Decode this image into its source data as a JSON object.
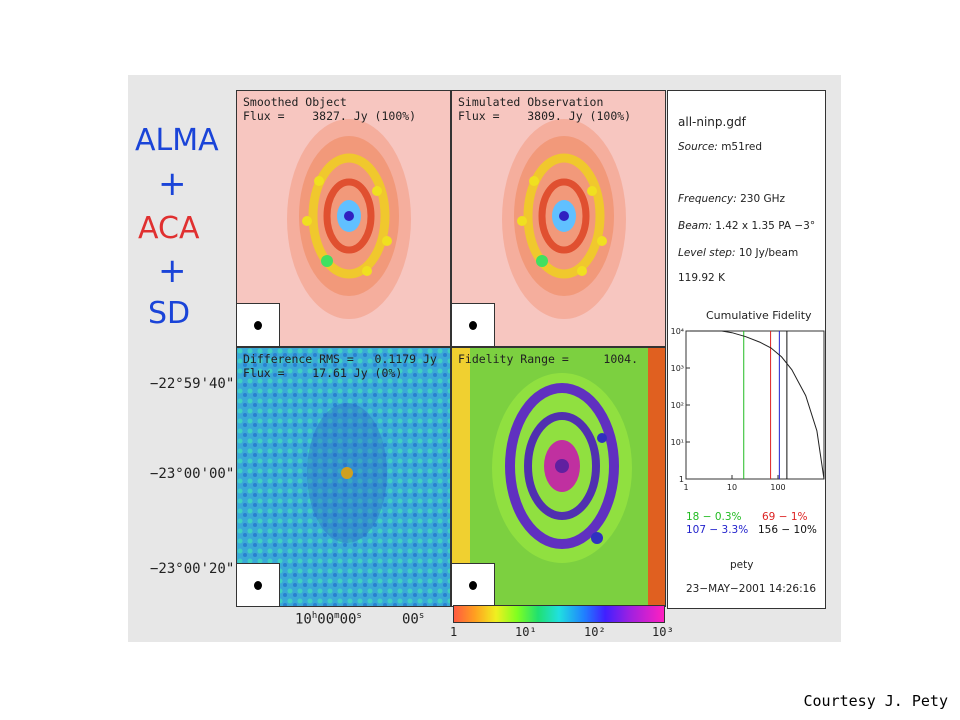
{
  "left_labels": {
    "alma": "ALMA",
    "plus1": "+",
    "aca": "ACA",
    "plus2": "+",
    "sd": "SD",
    "colors": {
      "alma": "#1a44d8",
      "aca": "#e03030",
      "sd": "#1a44d8"
    }
  },
  "declination_ticks": [
    "−22°59'40\"",
    "−23°00'00\"",
    "−23°00'20\""
  ],
  "ra_ticks": {
    "main_prefix": "10",
    "main_h": "h",
    "main_mid": "00",
    "main_m": "m",
    "main_sec": "00",
    "main_s": "s",
    "minor": "00",
    "minor_s": "s"
  },
  "panels": {
    "smoothed": {
      "line1": "Smoothed Object",
      "line2": "Flux =    3827. Jy (100%)"
    },
    "simulated": {
      "line1": "Simulated Observation",
      "line2": "Flux =    3809. Jy (100%)"
    },
    "difference": {
      "line1": "Difference RMS =   0.1179 Jy",
      "line2": "Flux =    17.61 Jy (0%)"
    },
    "fidelity": {
      "line1": "Fidelity Range =     1004."
    }
  },
  "info": {
    "filename": "all-ninp.gdf",
    "source_label": "Source:",
    "source": "m51red",
    "frequency_label": "Frequency:",
    "frequency": "230 GHz",
    "beam_label": "Beam:",
    "beam": "1.42 x 1.35 PA −3°",
    "level_label": "Level step:",
    "level": "10 Jy/beam",
    "temperature": "119.92 K",
    "fidelity_title": "Cumulative Fidelity",
    "legend": [
      {
        "text": "18 − 0.3%",
        "color": "#22bb22"
      },
      {
        "text": "69 − 1%",
        "color": "#dd2222"
      },
      {
        "text": "107 − 3.3%",
        "color": "#2222cc"
      },
      {
        "text": "156 − 10%",
        "color": "#111111"
      }
    ],
    "user": "pety",
    "date": "23−MAY−2001 14:26:16"
  },
  "chart_data": {
    "type": "line",
    "title": "Cumulative Fidelity",
    "xscale": "log",
    "yscale": "log",
    "xlim": [
      1,
      1000
    ],
    "ylim": [
      1,
      10000
    ],
    "x_ticks": [
      "1",
      "10",
      "100"
    ],
    "y_ticks": [
      "10⁴",
      "10³",
      "10²",
      "10¹",
      "1"
    ],
    "series": [
      {
        "x": [
          1,
          3,
          6,
          10,
          20,
          40,
          70,
          120,
          200,
          400,
          700,
          1000
        ],
        "y": [
          15000,
          13000,
          11000,
          9000,
          7000,
          5000,
          3500,
          2000,
          900,
          180,
          20,
          1
        ]
      }
    ],
    "markers": [
      {
        "x": 18,
        "color": "#22bb22"
      },
      {
        "x": 69,
        "color": "#dd2222"
      },
      {
        "x": 107,
        "color": "#2222cc"
      },
      {
        "x": 156,
        "color": "#111111"
      }
    ]
  },
  "colorbar": {
    "ticks": [
      "1",
      "10¹",
      "10²",
      "10³"
    ]
  },
  "courtesy": "Courtesy J. Pety"
}
